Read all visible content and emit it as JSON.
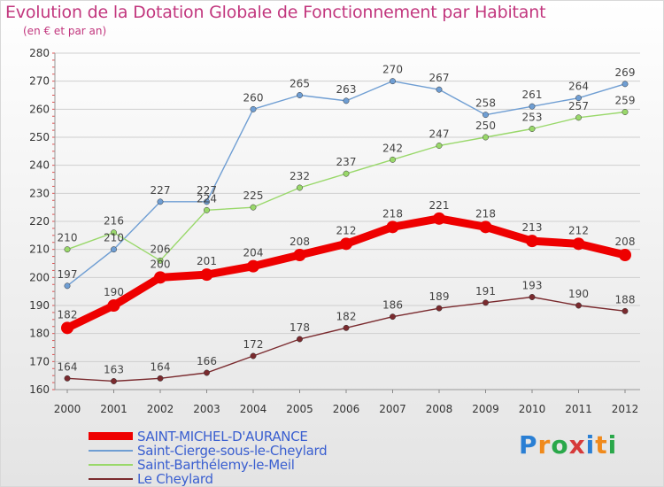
{
  "header": {
    "title": "Evolution de la Dotation Globale de Fonctionnement par Habitant",
    "subtitle": "(en € et par an)"
  },
  "logo": {
    "text": "Proxiti",
    "letter_colors": [
      "#2a7fd4",
      "#f08a1c",
      "#2aa84a",
      "#d63a3a",
      "#2a7fd4",
      "#f08a1c",
      "#2aa84a"
    ]
  },
  "chart_data": {
    "type": "line",
    "title": "Evolution de la Dotation Globale de Fonctionnement par Habitant",
    "subtitle": "(en € et par an)",
    "xlabel": "",
    "ylabel": "",
    "x": [
      "2000",
      "2001",
      "2002",
      "2003",
      "2004",
      "2005",
      "2006",
      "2007",
      "2008",
      "2009",
      "2010",
      "2011",
      "2012"
    ],
    "ylim": [
      160,
      280
    ],
    "yticks": [
      160,
      170,
      180,
      190,
      200,
      210,
      220,
      230,
      240,
      250,
      260,
      270,
      280
    ],
    "grid": "horizontal",
    "legend_position": "bottom-left",
    "series": [
      {
        "name": "SAINT-MICHEL-D'AURANCE",
        "values": [
          182,
          190,
          200,
          201,
          204,
          208,
          212,
          218,
          221,
          218,
          213,
          212,
          208
        ],
        "color": "#ee0000",
        "emphasis": "bold"
      },
      {
        "name": "Saint-Cierge-sous-le-Cheylard",
        "values": [
          197,
          210,
          227,
          227,
          260,
          265,
          263,
          270,
          267,
          258,
          261,
          264,
          269
        ],
        "color": "#6f9ed3",
        "emphasis": "normal"
      },
      {
        "name": "Saint-Barthélemy-le-Meil",
        "values": [
          210,
          216,
          206,
          224,
          225,
          232,
          237,
          242,
          247,
          250,
          253,
          257,
          259
        ],
        "color": "#99d86a",
        "emphasis": "normal"
      },
      {
        "name": "Le Cheylard",
        "values": [
          164,
          163,
          164,
          166,
          172,
          178,
          182,
          186,
          189,
          191,
          193,
          190,
          188
        ],
        "color": "#7a2a2e",
        "emphasis": "normal"
      }
    ]
  }
}
